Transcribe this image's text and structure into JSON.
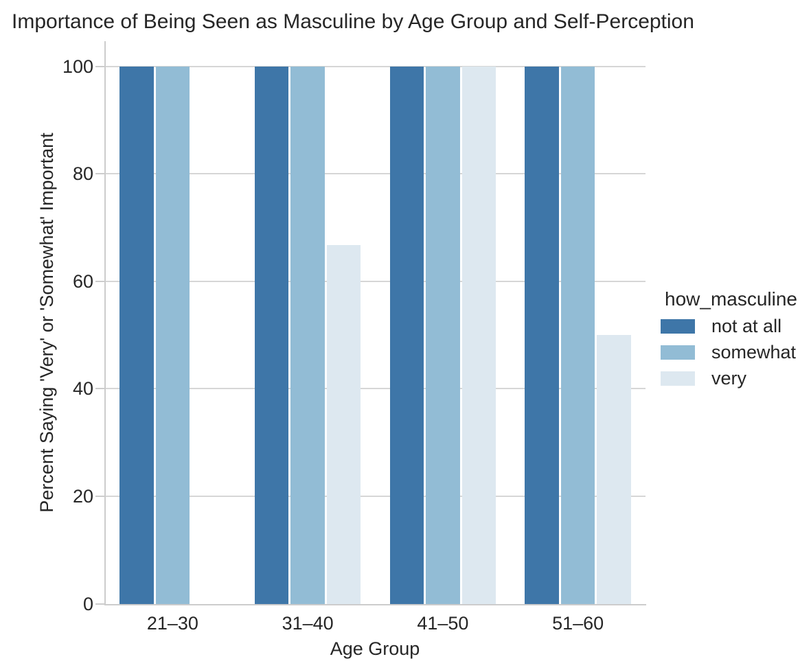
{
  "chart_data": {
    "type": "bar",
    "title": "Importance of Being Seen as Masculine by Age Group and Self-Perception",
    "xlabel": "Age Group",
    "ylabel": "Percent Saying 'Very' or 'Somewhat' Important",
    "categories": [
      "21–30",
      "31–40",
      "41–50",
      "51–60"
    ],
    "series": [
      {
        "name": "not at all",
        "color": "#3e76a8",
        "values": [
          100,
          100,
          100,
          100
        ]
      },
      {
        "name": "somewhat",
        "color": "#92bcd5",
        "values": [
          100,
          100,
          100,
          100
        ]
      },
      {
        "name": "very",
        "color": "#dde8f0",
        "values": [
          0,
          66.7,
          100,
          50
        ]
      }
    ],
    "legend": {
      "title": "how_masculine",
      "position": "right"
    },
    "ylim": [
      0,
      105
    ],
    "yticks": [
      0,
      20,
      40,
      60,
      80,
      100
    ],
    "grid": true,
    "grid_axis": "y"
  },
  "colors": {
    "text": "#262626",
    "grid": "#d6d6d6",
    "spine": "#cccccc",
    "background": "#ffffff",
    "accent_dark_blue": "#3e76a8",
    "accent_mid_blue": "#92bcd5",
    "accent_light_blue": "#dde8f0"
  }
}
